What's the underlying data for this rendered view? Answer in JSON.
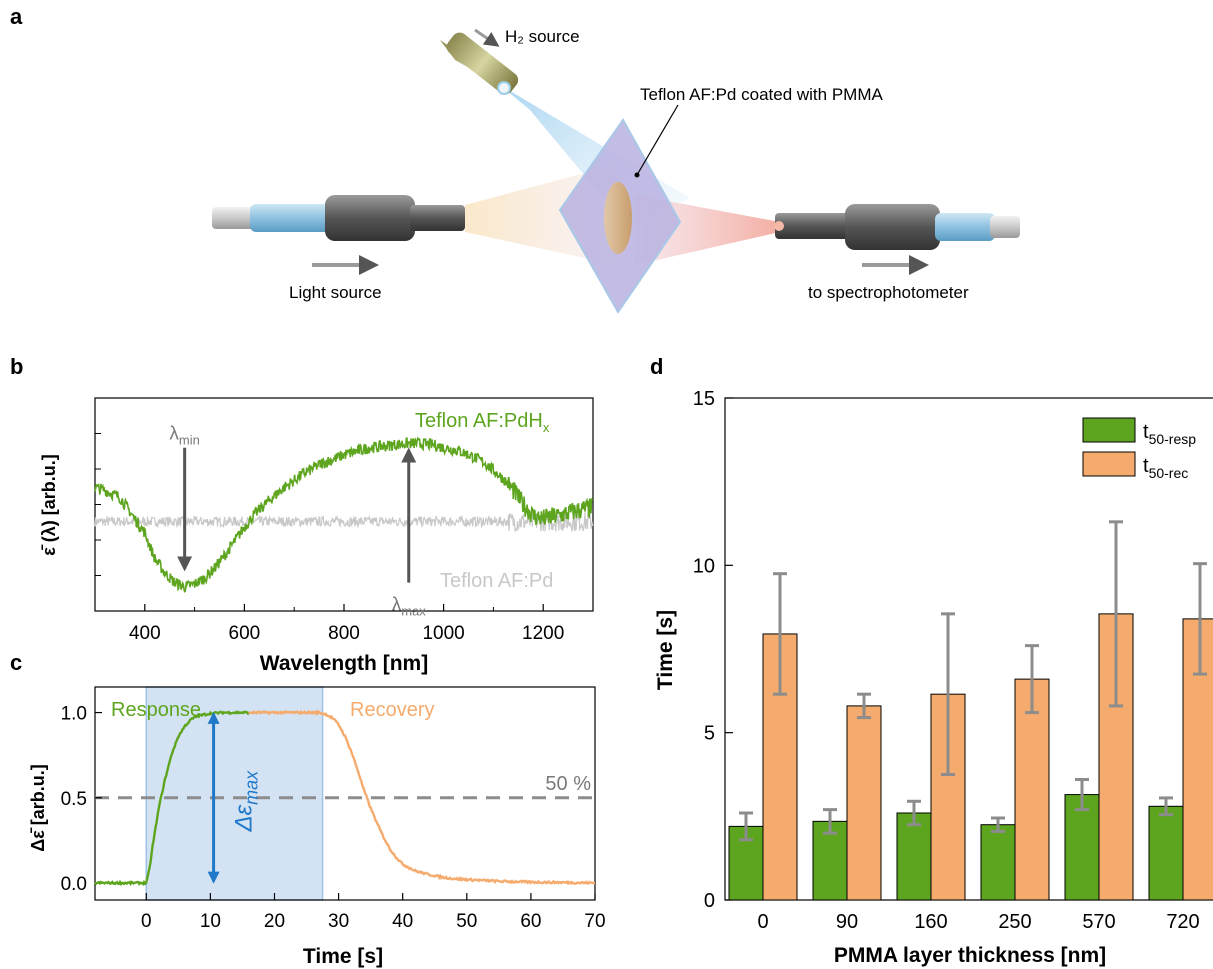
{
  "colors": {
    "green": "#5ea51f",
    "orange": "#f5ab6d",
    "gray": "#c8c8c8",
    "dark_gray": "#7a7a7a",
    "blue_arrow": "#1f78c8",
    "blue_box": "#c6d9ef",
    "errorbar": "#8c8c8c"
  },
  "panel_labels": [
    "a",
    "b",
    "c",
    "d"
  ],
  "panel_a": {
    "h2_source": "H₂ source",
    "sample_label": "Teflon AF:Pd coated with PMMA",
    "light_source": "Light source",
    "to_spectrophotometer": "to spectrophotometer"
  },
  "chart_data": [
    {
      "id": "b",
      "type": "line",
      "xlabel": "Wavelength [nm]",
      "ylabel": "ε̄ (λ) [arb.u.]",
      "xlim": [
        300,
        1300
      ],
      "x_ticks": [
        400,
        600,
        800,
        1000,
        1200
      ],
      "y_ticks_labeled": false,
      "series": [
        {
          "name": "Teflon AF:PdHx",
          "name_main": "Teflon AF:PdH",
          "name_sub": "x",
          "color": "#5ea51f",
          "x": [
            300,
            320,
            350,
            380,
            400,
            420,
            440,
            460,
            480,
            500,
            520,
            540,
            560,
            580,
            600,
            620,
            650,
            680,
            700,
            720,
            750,
            780,
            800,
            830,
            850,
            880,
            900,
            930,
            950,
            980,
            1000,
            1030,
            1050,
            1080,
            1100,
            1120,
            1140,
            1160,
            1180,
            1200,
            1230,
            1260,
            1300
          ],
          "y": [
            0.62,
            0.6,
            0.55,
            0.4,
            0.3,
            0.12,
            0.02,
            -0.05,
            -0.08,
            -0.06,
            -0.02,
            0.05,
            0.14,
            0.24,
            0.34,
            0.43,
            0.53,
            0.62,
            0.67,
            0.72,
            0.78,
            0.82,
            0.85,
            0.88,
            0.9,
            0.91,
            0.92,
            0.93,
            0.93,
            0.92,
            0.9,
            0.88,
            0.85,
            0.8,
            0.74,
            0.68,
            0.6,
            0.5,
            0.42,
            0.4,
            0.42,
            0.45,
            0.48
          ]
        },
        {
          "name": "Teflon AF:Pd",
          "color": "#c8c8c8",
          "x": [
            300,
            1300
          ],
          "y": [
            0.38,
            0.38
          ]
        }
      ],
      "annotations": [
        {
          "text": "λ",
          "sub": "min",
          "x": 480,
          "y_from": 0.9,
          "y_to": 0.05
        },
        {
          "text": "λ",
          "sub": "max",
          "x": 930,
          "y_from": -0.05,
          "y_to": 0.88
        }
      ]
    },
    {
      "id": "c",
      "type": "line",
      "xlabel": "Time [s]",
      "ylabel": "Δε̄ [arb.u.]",
      "xlim": [
        -8,
        70
      ],
      "ylim": [
        -0.1,
        1.15
      ],
      "x_ticks": [
        0,
        10,
        20,
        30,
        40,
        50,
        60,
        70
      ],
      "y_ticks": [
        0.0,
        0.5,
        1.0
      ],
      "threshold": {
        "y": 0.5,
        "label": "50 %"
      },
      "shaded_region": [
        0,
        27.5
      ],
      "delta_label": "Δε_max",
      "phase_labels": {
        "response": "Response",
        "recovery": "Recovery"
      },
      "series": [
        {
          "name": "Response",
          "color": "#5ea51f",
          "x": [
            -8,
            -2,
            0,
            0.5,
            1,
            2,
            3,
            4,
            5,
            6,
            7,
            8,
            10,
            12,
            14,
            16
          ],
          "y": [
            0,
            0,
            0,
            0.08,
            0.22,
            0.45,
            0.62,
            0.76,
            0.86,
            0.92,
            0.96,
            0.98,
            0.995,
            1.0,
            1.0,
            1.0
          ]
        },
        {
          "name": "Recovery",
          "color": "#f5ab6d",
          "x": [
            16,
            20,
            24,
            27,
            28,
            29,
            30,
            31,
            32,
            33,
            34,
            35,
            36,
            37,
            38,
            39,
            40,
            42,
            44,
            46,
            48,
            50,
            55,
            60,
            65,
            70
          ],
          "y": [
            1.0,
            1.0,
            1.0,
            1.0,
            0.99,
            0.97,
            0.93,
            0.86,
            0.77,
            0.66,
            0.54,
            0.44,
            0.35,
            0.27,
            0.2,
            0.15,
            0.11,
            0.07,
            0.05,
            0.035,
            0.025,
            0.02,
            0.01,
            0.005,
            0.003,
            0.0
          ]
        }
      ]
    },
    {
      "id": "d",
      "type": "bar",
      "xlabel": "PMMA layer thickness [nm]",
      "ylabel": "Time [s]",
      "ylim": [
        0,
        15
      ],
      "y_ticks": [
        0,
        5,
        10,
        15
      ],
      "categories": [
        "0",
        "90",
        "160",
        "250",
        "570",
        "720"
      ],
      "series": [
        {
          "name": "t50-resp",
          "name_main": "t",
          "name_sub": "50-resp",
          "color": "#5ea51f",
          "values": [
            2.2,
            2.35,
            2.6,
            2.25,
            3.15,
            2.8
          ],
          "errors": [
            0.4,
            0.35,
            0.35,
            0.2,
            0.45,
            0.25
          ]
        },
        {
          "name": "t50-rec",
          "name_main": "t",
          "name_sub": "50-rec",
          "color": "#f5ab6d",
          "values": [
            7.95,
            5.8,
            6.15,
            6.6,
            8.55,
            8.4
          ],
          "errors": [
            1.8,
            0.35,
            2.4,
            1.0,
            2.75,
            1.65
          ]
        }
      ],
      "legend_position": "top-right"
    }
  ]
}
